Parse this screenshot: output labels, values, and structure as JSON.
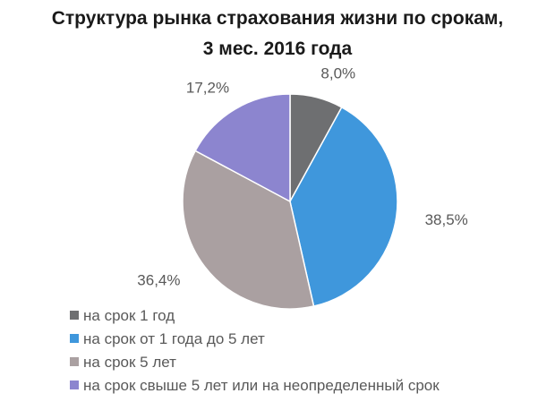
{
  "chart_data": {
    "type": "pie",
    "title_lines": [
      "Структура рынка страхования жизни по срокам,",
      "3 мес. 2016 года"
    ],
    "slices": [
      {
        "name": "на срок 1 год",
        "value": 8.0,
        "label": "8,0%",
        "color": "#6e6f71"
      },
      {
        "name": "на срок от 1 года до 5 лет",
        "value": 38.5,
        "label": "38,5%",
        "color": "#3f97dc"
      },
      {
        "name": "на срок 5 лет",
        "value": 36.4,
        "label": "36,4%",
        "color": "#aaa0a1"
      },
      {
        "name": "на срок свыше 5 лет или на неопределенный срок",
        "value": 17.2,
        "label": "17,2%",
        "color": "#8c85cf"
      }
    ],
    "legend_position": "bottom-left"
  }
}
